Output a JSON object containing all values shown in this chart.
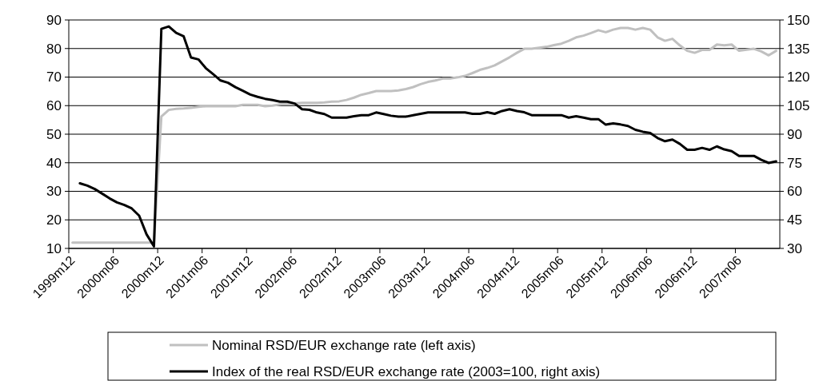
{
  "chart_data": {
    "type": "line",
    "categories": [
      "1999m12",
      null,
      null,
      null,
      null,
      null,
      "2000m06",
      null,
      null,
      null,
      null,
      null,
      "2000m12",
      null,
      null,
      null,
      null,
      null,
      "2001m06",
      null,
      null,
      null,
      null,
      null,
      "2001m12",
      null,
      null,
      null,
      null,
      null,
      "2002m06",
      null,
      null,
      null,
      null,
      null,
      "2002m12",
      null,
      null,
      null,
      null,
      null,
      "2003m06",
      null,
      null,
      null,
      null,
      null,
      "2003m12",
      null,
      null,
      null,
      null,
      null,
      "2004m06",
      null,
      null,
      null,
      null,
      null,
      "2004m12",
      null,
      null,
      null,
      null,
      null,
      "2005m06",
      null,
      null,
      null,
      null,
      null,
      "2005m12",
      null,
      null,
      null,
      null,
      null,
      "2006m06",
      null,
      null,
      null,
      null,
      null,
      "2006m12",
      null,
      null,
      null,
      null,
      null,
      "2007m06",
      null,
      null,
      null,
      null,
      null
    ],
    "series": [
      {
        "name": "Nominal RSD/EUR exchange rate (left axis)",
        "color": "#c0c0c0",
        "values": [
          12,
          12,
          12,
          12,
          12,
          12,
          12,
          12,
          12,
          12,
          12,
          12,
          56.2,
          58.5,
          58.9,
          59,
          59.2,
          59.6,
          59.8,
          59.8,
          59.8,
          59.8,
          59.8,
          60.3,
          60.3,
          60.3,
          59.8,
          60,
          60.4,
          60.7,
          60.8,
          61,
          61,
          61,
          61.1,
          61.4,
          61.5,
          62,
          62.8,
          63.8,
          64.4,
          65.1,
          65.1,
          65.1,
          65.3,
          65.8,
          66.5,
          67.5,
          68.3,
          68.8,
          69.5,
          69.5,
          69.9,
          70.4,
          71.4,
          72.5,
          73.2,
          74.1,
          75.5,
          76.9,
          78.5,
          79.9,
          79.9,
          80.3,
          80.6,
          81.2,
          81.7,
          82.7,
          83.9,
          84.5,
          85.4,
          86.4,
          85.7,
          86.6,
          87.2,
          87.2,
          86.6,
          87.2,
          86.6,
          83.9,
          82.7,
          83.4,
          81.1,
          79.2,
          78.5,
          79.5,
          79.5,
          81.4,
          81.1,
          81.4,
          79.2,
          79.6,
          79.9,
          79,
          77.6,
          79.2
        ]
      },
      {
        "name": "Index of the real RSD/EUR exchange rate (2003=100, right axis)",
        "color": "#000000",
        "axis": "y2",
        "values": [
          null,
          64.2,
          63,
          61.2,
          58.8,
          56.3,
          54.2,
          52.8,
          51,
          47.2,
          37.4,
          31.1,
          145.3,
          146.6,
          143.2,
          141.5,
          130.3,
          129.3,
          124.7,
          121.5,
          118.2,
          117,
          114.7,
          112.8,
          110.8,
          109.6,
          108.6,
          107.9,
          107.1,
          107.1,
          106.1,
          103.1,
          102.8,
          101.4,
          100.6,
          98.7,
          98.7,
          98.7,
          99.4,
          100,
          100,
          101.4,
          100.6,
          99.7,
          99.2,
          99.2,
          100,
          100.7,
          101.4,
          101.4,
          101.4,
          101.4,
          101.4,
          101.4,
          100.7,
          100.7,
          101.5,
          100.7,
          102.2,
          103.1,
          102.2,
          101.5,
          100,
          100,
          100,
          100,
          100,
          98.7,
          99.4,
          98.7,
          97.9,
          97.9,
          95,
          95.7,
          95.1,
          94.3,
          92.3,
          91.3,
          90.6,
          88,
          86.3,
          87.2,
          84.9,
          81.8,
          81.8,
          82.8,
          81.8,
          83.6,
          82,
          81.1,
          78.6,
          78.6,
          78.6,
          76.5,
          74.9,
          75.7
        ]
      }
    ],
    "ylim": [
      10,
      90
    ],
    "yticks": [
      10,
      20,
      30,
      40,
      50,
      60,
      70,
      80,
      90
    ],
    "y2lim": [
      30,
      150
    ],
    "y2ticks": [
      30,
      45,
      60,
      75,
      90,
      105,
      120,
      135,
      150
    ],
    "grid": "y",
    "legend": "bottom",
    "marker": "none",
    "line_style": "solid"
  }
}
